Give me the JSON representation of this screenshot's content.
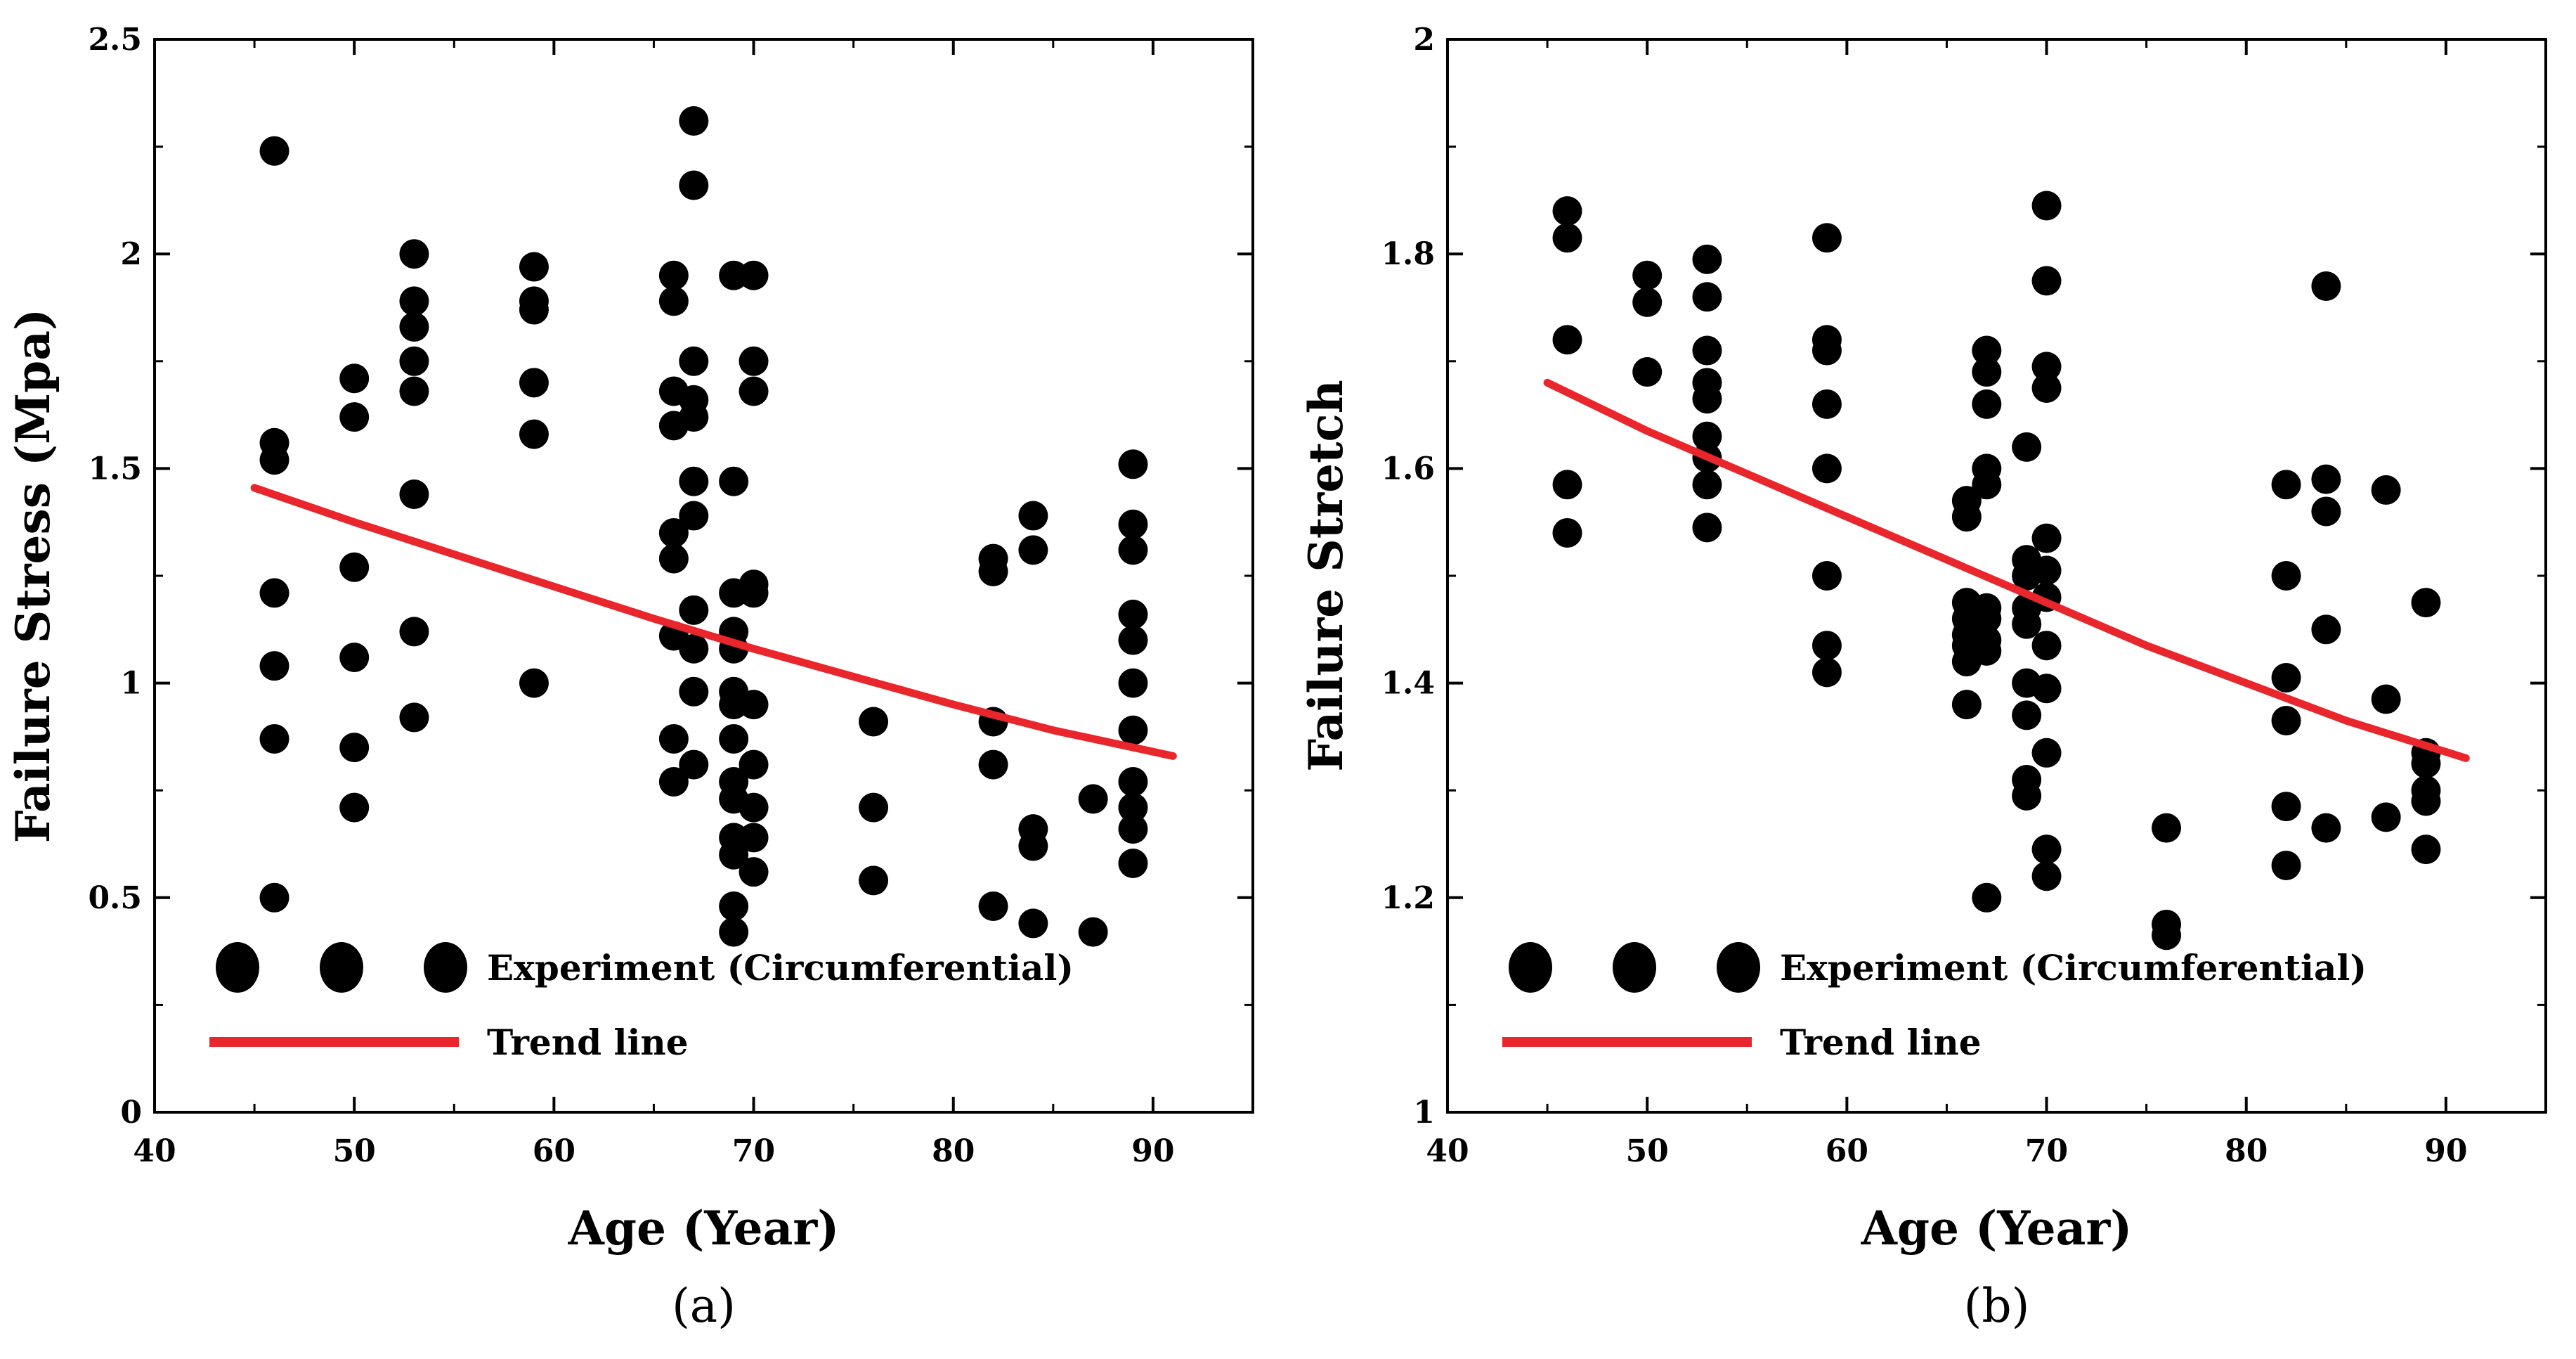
{
  "chart_data": [
    {
      "type": "scatter",
      "panel_label": "(a)",
      "xlabel": "Age (Year)",
      "ylabel": "Failure Stress (Mpa)",
      "xlim": [
        40,
        95
      ],
      "ylim": [
        0,
        2.5
      ],
      "xticks": [
        40,
        50,
        60,
        70,
        80,
        90
      ],
      "yticks": [
        0,
        0.5,
        1,
        1.5,
        2,
        2.5
      ],
      "xtick_labels": [
        "40",
        "50",
        "60",
        "70",
        "80",
        "90"
      ],
      "ytick_labels": [
        "0",
        "0.5",
        "1",
        "1.5",
        "2",
        "2.5"
      ],
      "grid": false,
      "legend": {
        "position": "bottom-left",
        "entries": [
          {
            "label": "Experiment (Circumferential)",
            "marker": "circle"
          },
          {
            "label": "Trend line",
            "marker": "line"
          }
        ]
      },
      "series": [
        {
          "name": "Experiment (Circumferential)",
          "kind": "scatter",
          "color": "#000000",
          "points": [
            [
              46,
              2.24
            ],
            [
              46,
              1.56
            ],
            [
              46,
              1.52
            ],
            [
              46,
              1.21
            ],
            [
              46,
              1.04
            ],
            [
              46,
              0.87
            ],
            [
              46,
              0.5
            ],
            [
              50,
              1.71
            ],
            [
              50,
              1.62
            ],
            [
              50,
              1.27
            ],
            [
              50,
              1.06
            ],
            [
              50,
              0.85
            ],
            [
              50,
              0.71
            ],
            [
              53,
              2.0
            ],
            [
              53,
              1.89
            ],
            [
              53,
              1.83
            ],
            [
              53,
              1.75
            ],
            [
              53,
              1.68
            ],
            [
              53,
              1.44
            ],
            [
              53,
              1.12
            ],
            [
              53,
              0.92
            ],
            [
              59,
              1.97
            ],
            [
              59,
              1.89
            ],
            [
              59,
              1.87
            ],
            [
              59,
              1.7
            ],
            [
              59,
              1.58
            ],
            [
              59,
              1.0
            ],
            [
              66,
              1.95
            ],
            [
              66,
              1.89
            ],
            [
              66,
              1.68
            ],
            [
              66,
              1.6
            ],
            [
              66,
              1.35
            ],
            [
              66,
              1.29
            ],
            [
              66,
              1.11
            ],
            [
              66,
              0.87
            ],
            [
              66,
              0.77
            ],
            [
              67,
              2.31
            ],
            [
              67,
              2.16
            ],
            [
              67,
              1.75
            ],
            [
              67,
              1.66
            ],
            [
              67,
              1.62
            ],
            [
              67,
              1.47
            ],
            [
              67,
              1.39
            ],
            [
              67,
              1.17
            ],
            [
              67,
              1.08
            ],
            [
              67,
              0.98
            ],
            [
              67,
              0.81
            ],
            [
              69,
              1.95
            ],
            [
              69,
              1.47
            ],
            [
              69,
              1.21
            ],
            [
              69,
              1.12
            ],
            [
              69,
              1.08
            ],
            [
              69,
              0.98
            ],
            [
              69,
              0.95
            ],
            [
              69,
              0.87
            ],
            [
              69,
              0.77
            ],
            [
              69,
              0.73
            ],
            [
              69,
              0.64
            ],
            [
              69,
              0.6
            ],
            [
              69,
              0.48
            ],
            [
              69,
              0.42
            ],
            [
              70,
              1.95
            ],
            [
              70,
              1.75
            ],
            [
              70,
              1.68
            ],
            [
              70,
              1.23
            ],
            [
              70,
              1.21
            ],
            [
              70,
              0.95
            ],
            [
              70,
              0.81
            ],
            [
              70,
              0.71
            ],
            [
              70,
              0.64
            ],
            [
              70,
              0.56
            ],
            [
              76,
              0.91
            ],
            [
              76,
              0.71
            ],
            [
              76,
              0.54
            ],
            [
              82,
              1.29
            ],
            [
              82,
              1.26
            ],
            [
              82,
              0.91
            ],
            [
              82,
              0.81
            ],
            [
              82,
              0.48
            ],
            [
              84,
              1.39
            ],
            [
              84,
              1.31
            ],
            [
              84,
              0.66
            ],
            [
              84,
              0.62
            ],
            [
              84,
              0.44
            ],
            [
              87,
              0.73
            ],
            [
              87,
              0.42
            ],
            [
              89,
              1.51
            ],
            [
              89,
              1.37
            ],
            [
              89,
              1.31
            ],
            [
              89,
              1.16
            ],
            [
              89,
              1.1
            ],
            [
              89,
              1.0
            ],
            [
              89,
              0.89
            ],
            [
              89,
              0.77
            ],
            [
              89,
              0.71
            ],
            [
              89,
              0.66
            ],
            [
              89,
              0.58
            ]
          ]
        },
        {
          "name": "Trend line",
          "kind": "line",
          "color": "#e8262b",
          "points": [
            [
              45,
              1.455
            ],
            [
              50,
              1.375
            ],
            [
              55,
              1.3
            ],
            [
              60,
              1.225
            ],
            [
              65,
              1.15
            ],
            [
              70,
              1.08
            ],
            [
              75,
              1.015
            ],
            [
              80,
              0.95
            ],
            [
              85,
              0.89
            ],
            [
              91,
              0.83
            ]
          ]
        }
      ]
    },
    {
      "type": "scatter",
      "panel_label": "(b)",
      "xlabel": "Age (Year)",
      "ylabel": "Failure Stretch",
      "xlim": [
        40,
        95
      ],
      "ylim": [
        1,
        2
      ],
      "xticks": [
        40,
        50,
        60,
        70,
        80,
        90
      ],
      "yticks": [
        1,
        1.2,
        1.4,
        1.6,
        1.8,
        2
      ],
      "xtick_labels": [
        "40",
        "50",
        "60",
        "70",
        "80",
        "90"
      ],
      "ytick_labels": [
        "1",
        "1.2",
        "1.4",
        "1.6",
        "1.8",
        "2"
      ],
      "grid": false,
      "legend": {
        "position": "bottom-left",
        "entries": [
          {
            "label": "Experiment (Circumferential)",
            "marker": "circle"
          },
          {
            "label": "Trend line",
            "marker": "line"
          }
        ]
      },
      "series": [
        {
          "name": "Experiment (Circumferential)",
          "kind": "scatter",
          "color": "#000000",
          "points": [
            [
              46,
              1.84
            ],
            [
              46,
              1.815
            ],
            [
              46,
              1.72
            ],
            [
              46,
              1.585
            ],
            [
              46,
              1.54
            ],
            [
              50,
              1.78
            ],
            [
              50,
              1.755
            ],
            [
              50,
              1.69
            ],
            [
              53,
              1.795
            ],
            [
              53,
              1.76
            ],
            [
              53,
              1.71
            ],
            [
              53,
              1.68
            ],
            [
              53,
              1.665
            ],
            [
              53,
              1.63
            ],
            [
              53,
              1.61
            ],
            [
              53,
              1.585
            ],
            [
              53,
              1.545
            ],
            [
              59,
              1.815
            ],
            [
              59,
              1.72
            ],
            [
              59,
              1.71
            ],
            [
              59,
              1.66
            ],
            [
              59,
              1.6
            ],
            [
              59,
              1.5
            ],
            [
              59,
              1.435
            ],
            [
              59,
              1.41
            ],
            [
              66,
              1.57
            ],
            [
              66,
              1.555
            ],
            [
              66,
              1.475
            ],
            [
              66,
              1.46
            ],
            [
              66,
              1.445
            ],
            [
              66,
              1.435
            ],
            [
              66,
              1.42
            ],
            [
              66,
              1.38
            ],
            [
              67,
              1.71
            ],
            [
              67,
              1.69
            ],
            [
              67,
              1.66
            ],
            [
              67,
              1.6
            ],
            [
              67,
              1.585
            ],
            [
              67,
              1.47
            ],
            [
              67,
              1.46
            ],
            [
              67,
              1.44
            ],
            [
              67,
              1.43
            ],
            [
              67,
              1.2
            ],
            [
              69,
              1.62
            ],
            [
              69,
              1.515
            ],
            [
              69,
              1.5
            ],
            [
              69,
              1.47
            ],
            [
              69,
              1.455
            ],
            [
              69,
              1.4
            ],
            [
              69,
              1.37
            ],
            [
              69,
              1.31
            ],
            [
              69,
              1.295
            ],
            [
              70,
              1.845
            ],
            [
              70,
              1.775
            ],
            [
              70,
              1.695
            ],
            [
              70,
              1.675
            ],
            [
              70,
              1.535
            ],
            [
              70,
              1.505
            ],
            [
              70,
              1.48
            ],
            [
              70,
              1.435
            ],
            [
              70,
              1.395
            ],
            [
              70,
              1.335
            ],
            [
              70,
              1.245
            ],
            [
              70,
              1.22
            ],
            [
              76,
              1.265
            ],
            [
              76,
              1.175
            ],
            [
              76,
              1.165
            ],
            [
              82,
              1.585
            ],
            [
              82,
              1.5
            ],
            [
              82,
              1.405
            ],
            [
              82,
              1.365
            ],
            [
              82,
              1.285
            ],
            [
              82,
              1.23
            ],
            [
              84,
              1.77
            ],
            [
              84,
              1.59
            ],
            [
              84,
              1.56
            ],
            [
              84,
              1.45
            ],
            [
              84,
              1.265
            ],
            [
              87,
              1.58
            ],
            [
              87,
              1.385
            ],
            [
              87,
              1.275
            ],
            [
              89,
              1.475
            ],
            [
              89,
              1.335
            ],
            [
              89,
              1.325
            ],
            [
              89,
              1.3
            ],
            [
              89,
              1.29
            ],
            [
              89,
              1.245
            ]
          ]
        },
        {
          "name": "Trend line",
          "kind": "line",
          "color": "#e8262b",
          "points": [
            [
              45,
              1.68
            ],
            [
              50,
              1.635
            ],
            [
              55,
              1.595
            ],
            [
              60,
              1.555
            ],
            [
              65,
              1.515
            ],
            [
              70,
              1.475
            ],
            [
              75,
              1.435
            ],
            [
              80,
              1.4
            ],
            [
              85,
              1.365
            ],
            [
              91,
              1.33
            ]
          ]
        }
      ]
    }
  ]
}
